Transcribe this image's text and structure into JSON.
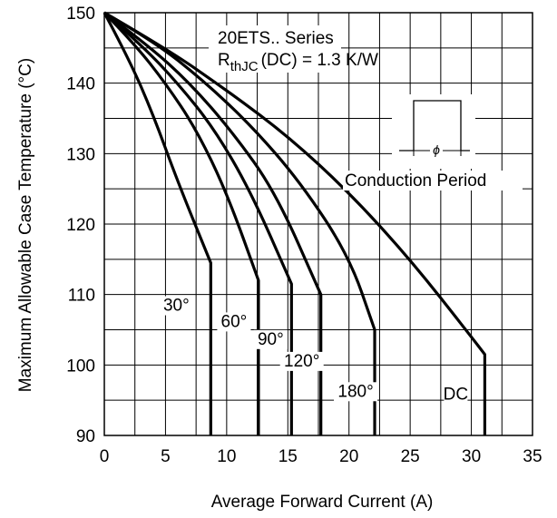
{
  "chart_data": {
    "type": "line",
    "title": "",
    "xlabel": "Average Forward Current (A)",
    "ylabel": "Maximum Allowable Case Temperature (°C)",
    "xlim": [
      0,
      35
    ],
    "ylim": [
      90,
      150
    ],
    "xticks": [
      0,
      5,
      10,
      15,
      20,
      25,
      30,
      35
    ],
    "yticks": [
      90,
      100,
      110,
      120,
      130,
      140,
      150
    ],
    "grid": true,
    "annotations": {
      "series_name": "20ETS.. Series",
      "rth_prefix": "R",
      "rth_subscript": "thJC",
      "rth_suffix": "(DC) = 1.3 K/W",
      "conduction_symbol": "ϕ",
      "conduction_label": "Conduction Period"
    },
    "series": [
      {
        "label": "30°",
        "x": [
          0,
          2,
          4,
          6,
          8.7
        ],
        "y": [
          150,
          143.5,
          135.5,
          126,
          114.5
        ]
      },
      {
        "label": "60°",
        "x": [
          0,
          2.5,
          5,
          7.5,
          10,
          12.6
        ],
        "y": [
          150,
          145.5,
          140,
          133.5,
          124.5,
          112
        ]
      },
      {
        "label": "90°",
        "x": [
          0,
          3,
          6,
          9,
          12,
          15.3
        ],
        "y": [
          150,
          145.5,
          140,
          133.5,
          124.5,
          111.5
        ]
      },
      {
        "label": "120°",
        "x": [
          0,
          3.5,
          7,
          10.5,
          14,
          17.7
        ],
        "y": [
          150,
          145.5,
          140,
          133,
          124.5,
          110
        ]
      },
      {
        "label": "180°",
        "x": [
          0,
          4,
          8,
          12,
          16,
          20,
          22.1
        ],
        "y": [
          150,
          146,
          140.5,
          134,
          126,
          115.5,
          105
        ]
      },
      {
        "label": "DC",
        "x": [
          0,
          5,
          10,
          15,
          20,
          25,
          30,
          31.1
        ],
        "y": [
          150,
          145,
          139,
          132.5,
          124.5,
          115,
          104,
          101.5
        ]
      }
    ]
  }
}
